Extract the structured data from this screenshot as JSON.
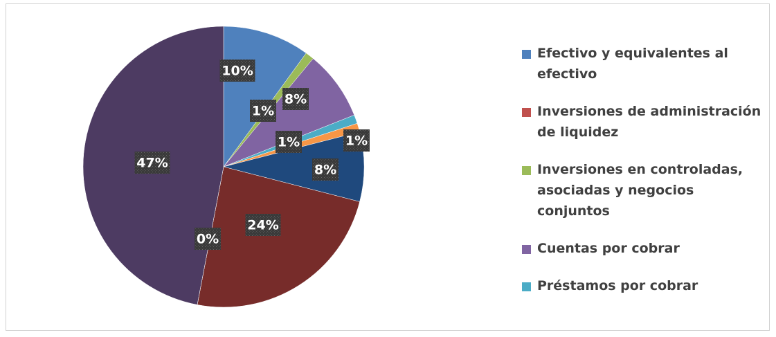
{
  "chart_data": {
    "type": "pie",
    "values": [
      10,
      1,
      8,
      1,
      1,
      8,
      24,
      0,
      47
    ],
    "value_labels": [
      "10%",
      "1%",
      "8%",
      "1%",
      "1%",
      "8%",
      "24%",
      "0%",
      "47%"
    ],
    "colors": [
      "#4f81bd",
      "#9bbb59",
      "#8064a2",
      "#4bacc6",
      "#f79646",
      "#1f497d",
      "#772c2a",
      "#77933c",
      "#4d3b62"
    ],
    "legend": [
      {
        "name": "Efectivo y equivalentes al efectivo",
        "color": "#4f81bd"
      },
      {
        "name": "Inversiones de administración de liquidez",
        "color": "#c0504d"
      },
      {
        "name": "Inversiones en controladas, asociadas y negocios conjuntos",
        "color": "#9bbb59"
      },
      {
        "name": "Cuentas por cobrar",
        "color": "#8064a2"
      },
      {
        "name": "Préstamos por cobrar",
        "color": "#4bacc6"
      }
    ]
  }
}
